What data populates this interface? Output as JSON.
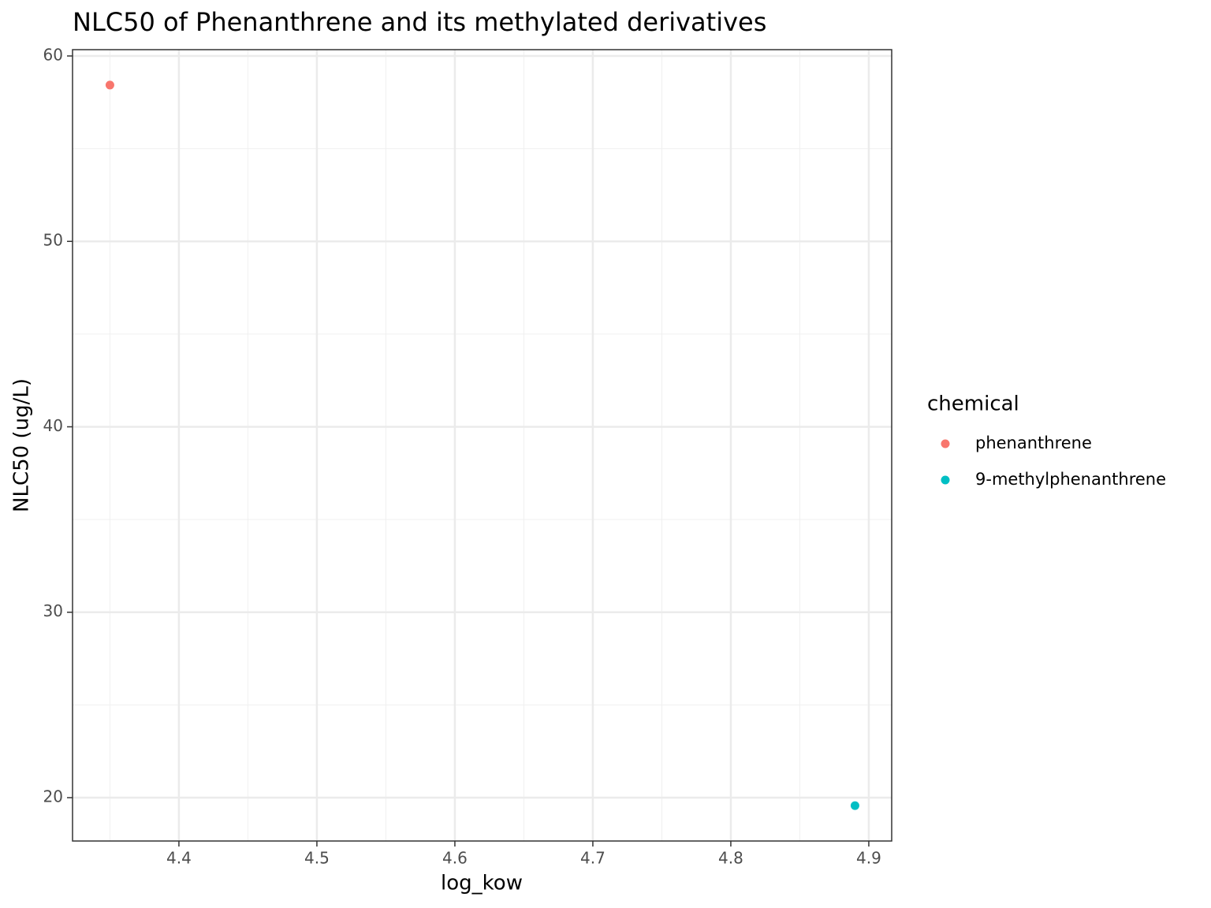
{
  "chart_data": {
    "type": "scatter",
    "title": "NLC50 of Phenanthrene and its methylated derivatives",
    "x_label": "log_kow",
    "y_label": "NLC50 (ug/L)",
    "legend_title": "chemical",
    "series": [
      {
        "name": "phenanthrene",
        "color": "#F8766D",
        "x": [
          4.35
        ],
        "values": [
          58.43
        ]
      },
      {
        "name": "9-methylphenanthrene",
        "color": "#00BFC4",
        "x": [
          4.89
        ],
        "values": [
          19.57
        ]
      }
    ],
    "xlim": [
      4.3229,
      4.9166
    ],
    "ylim": [
      17.662,
      60.34
    ],
    "xticks": [
      4.4,
      4.5,
      4.6,
      4.7,
      4.8,
      4.9
    ],
    "yticks": [
      20,
      30,
      40,
      50,
      60
    ],
    "xminor": [
      4.35,
      4.45,
      4.55,
      4.65,
      4.75,
      4.85
    ],
    "yminor": [
      25,
      35,
      45,
      55
    ],
    "grid": true,
    "legend": "right"
  }
}
